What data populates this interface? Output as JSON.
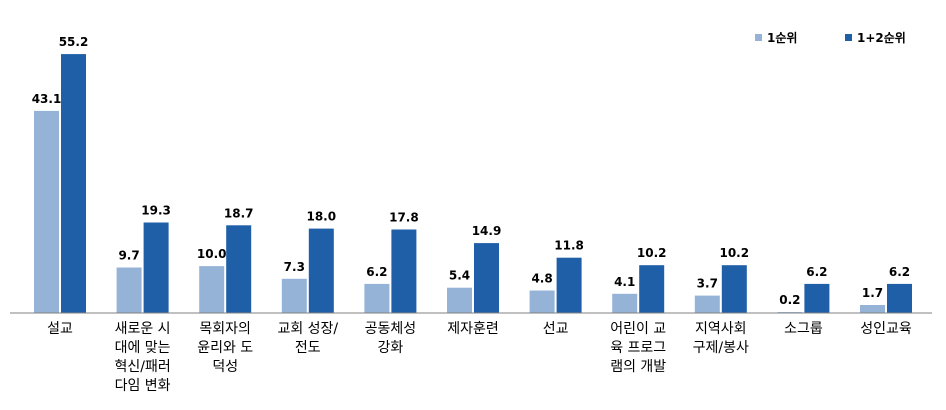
{
  "chart_data": {
    "type": "bar",
    "categories": [
      "설교",
      "새로운 시\n대에 맞는\n혁신/패러\n다임 변화",
      "목회자의\n윤리와 도\n덕성",
      "교회 성장/\n전도",
      "공동체성\n강화",
      "제자훈련",
      "선교",
      "어린이 교\n육 프로그\n램의 개발",
      "지역사회\n구제/봉사",
      "소그룹",
      "성인교육"
    ],
    "series": [
      {
        "name": "1순위",
        "color": "#95b3d7",
        "values": [
          43.1,
          9.7,
          10.0,
          7.3,
          6.2,
          5.4,
          4.8,
          4.1,
          3.7,
          0.2,
          1.7
        ],
        "labels": [
          "43.1",
          "9.7",
          "10.0",
          "7.3",
          "6.2",
          "5.4",
          "4.8",
          "4.1",
          "3.7",
          "0.2",
          "1.7"
        ]
      },
      {
        "name": "1+2순위",
        "color": "#1f5fa8",
        "values": [
          55.2,
          19.3,
          18.7,
          18.0,
          17.8,
          14.9,
          11.8,
          10.2,
          10.2,
          6.2,
          6.2
        ],
        "labels": [
          "55.2",
          "19.3",
          "18.7",
          "18.0",
          "17.8",
          "14.9",
          "11.8",
          "10.2",
          "10.2",
          "6.2",
          "6.2"
        ]
      }
    ],
    "ylim": [
      0,
      60
    ],
    "title": "",
    "xlabel": "",
    "ylabel": "",
    "grid": false,
    "legend_position": "top-right"
  }
}
